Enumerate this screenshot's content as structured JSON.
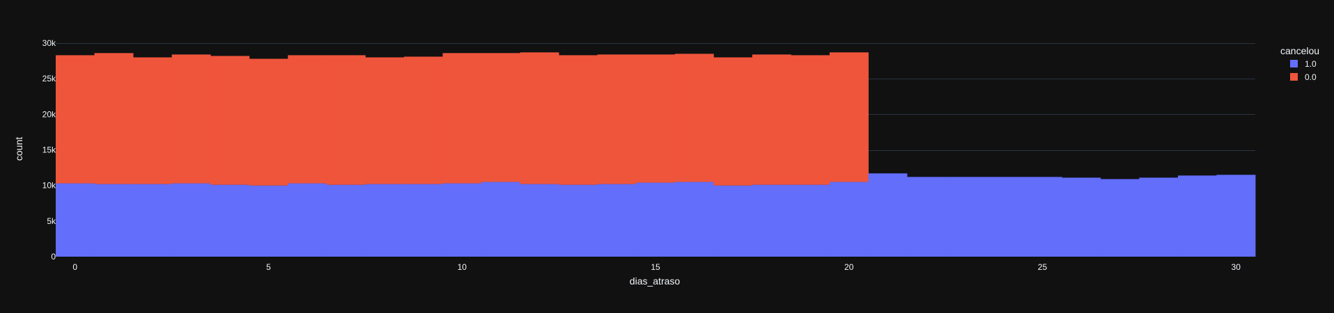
{
  "chart_data": {
    "type": "bar",
    "barmode": "stack",
    "xlabel": "dias_atraso",
    "ylabel": "count",
    "x": [
      0,
      1,
      2,
      3,
      4,
      5,
      6,
      7,
      8,
      9,
      10,
      11,
      12,
      13,
      14,
      15,
      16,
      17,
      18,
      19,
      20,
      21,
      22,
      23,
      24,
      25,
      26,
      27,
      28,
      29,
      30
    ],
    "xlim": [
      -0.5,
      30.5
    ],
    "ylim": [
      0,
      30000
    ],
    "x_ticks": [
      0,
      5,
      10,
      15,
      20,
      25,
      30
    ],
    "y_ticks": [
      0,
      5000,
      10000,
      15000,
      20000,
      25000,
      30000
    ],
    "x_tick_labels": [
      "0",
      "5",
      "10",
      "15",
      "20",
      "25",
      "30"
    ],
    "y_tick_labels": [
      "0",
      "5k",
      "10k",
      "15k",
      "20k",
      "25k",
      "30k"
    ],
    "grid": true,
    "legend": {
      "title": "cancelou",
      "placement": "top-right"
    },
    "series": [
      {
        "name": "1.0",
        "color": "#636efa",
        "values": [
          10300,
          10200,
          10200,
          10300,
          10100,
          10000,
          10300,
          10100,
          10200,
          10200,
          10300,
          10500,
          10200,
          10100,
          10200,
          10400,
          10500,
          10000,
          10100,
          10100,
          10500,
          11700,
          11200,
          11200,
          11200,
          11200,
          11100,
          10900,
          11100,
          11400,
          11500
        ]
      },
      {
        "name": "0.0",
        "color": "#ef553b",
        "values": [
          18000,
          18400,
          17800,
          18100,
          18100,
          17800,
          18000,
          18200,
          17800,
          17900,
          18300,
          18100,
          18500,
          18200,
          18200,
          18000,
          18000,
          18000,
          18300,
          18200,
          18200,
          0,
          0,
          0,
          0,
          0,
          0,
          0,
          0,
          0,
          0
        ]
      }
    ]
  }
}
